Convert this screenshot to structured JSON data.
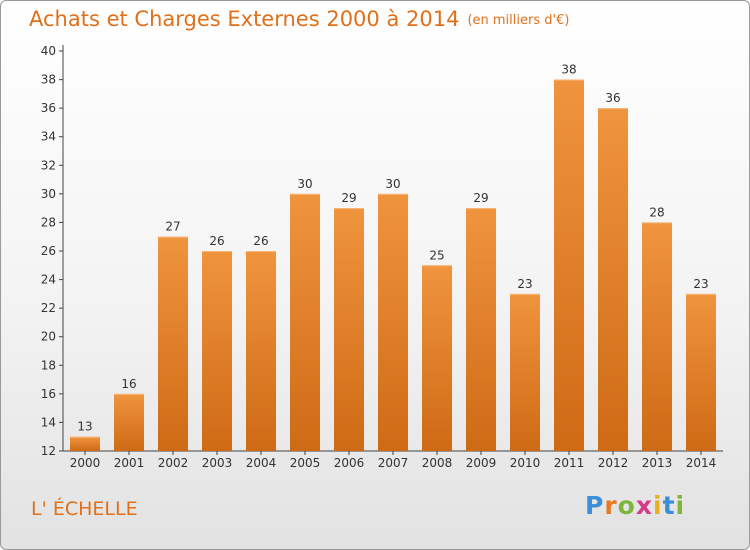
{
  "chart_data": {
    "type": "bar",
    "title": "Achats et Charges Externes 2000 à 2014",
    "subtitle": "(en milliers d'€)",
    "categories": [
      "2000",
      "2001",
      "2002",
      "2003",
      "2004",
      "2005",
      "2006",
      "2007",
      "2008",
      "2009",
      "2010",
      "2011",
      "2012",
      "2013",
      "2014"
    ],
    "values": [
      13,
      16,
      27,
      26,
      26,
      30,
      29,
      30,
      25,
      29,
      23,
      38,
      36,
      28,
      23
    ],
    "ylim": [
      12,
      40
    ],
    "yticks": [
      12,
      14,
      16,
      18,
      20,
      22,
      24,
      26,
      28,
      30,
      32,
      34,
      36,
      38,
      40
    ],
    "grid": false,
    "legend": "none",
    "bar_color": "#f0943e",
    "bar_color_dark": "#cf6a15"
  },
  "place_label": "L' ÉCHELLE",
  "logo": {
    "letters": [
      "P",
      "r",
      "o",
      "x",
      "i",
      "t",
      "i"
    ],
    "colors": [
      "#3a8fd8",
      "#e57a23",
      "#7fb53a",
      "#d23a8a",
      "#e6b21e",
      "#3a8fd8",
      "#7fb53a"
    ]
  },
  "accent_color": "#e0701a"
}
